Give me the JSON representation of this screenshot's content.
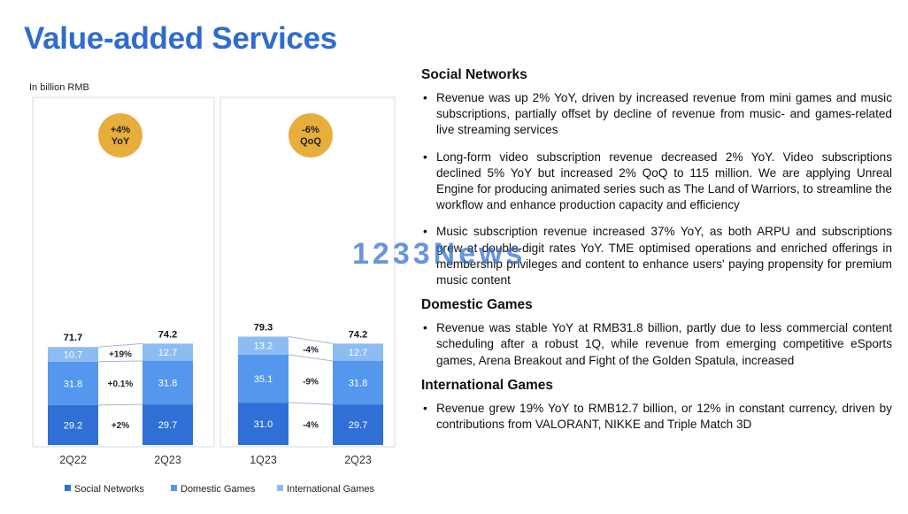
{
  "title": "Value-added Services",
  "unit_label": "In billion RMB",
  "watermark": "1233News",
  "colors": {
    "social_networks": "#2f6fd6",
    "domestic_games": "#5597ec",
    "international_games": "#8dbcf3",
    "badge": "#e8ae3c",
    "title": "#2f6ccd"
  },
  "chart_data": {
    "type": "bar",
    "stacked": true,
    "categories": [
      "2Q22",
      "2Q23",
      "1Q23",
      "2Q23"
    ],
    "series": [
      {
        "name": "Social Networks",
        "values": [
          29.2,
          29.7,
          31.0,
          29.7
        ]
      },
      {
        "name": "Domestic Games",
        "values": [
          31.8,
          31.8,
          35.1,
          31.8
        ]
      },
      {
        "name": "International Games",
        "values": [
          10.7,
          12.7,
          13.2,
          12.7
        ]
      }
    ],
    "totals": [
      "71.7",
      "74.2",
      "79.3",
      "74.2"
    ],
    "segment_labels": [
      [
        "29.2",
        "31.8",
        "10.7"
      ],
      [
        "29.7",
        "31.8",
        "12.7"
      ],
      [
        "31.0",
        "35.1",
        "13.2"
      ],
      [
        "29.7",
        "31.8",
        "12.7"
      ]
    ],
    "groups": [
      {
        "badge": [
          "+4%",
          "YoY"
        ],
        "changes": [
          "+2%",
          "+0.1%",
          "+19%"
        ]
      },
      {
        "badge": [
          "-6%",
          "QoQ"
        ],
        "changes": [
          "-4%",
          "-9%",
          "-4%"
        ]
      }
    ],
    "legend_position": "bottom"
  },
  "sections": [
    {
      "heading": "Social Networks",
      "bullets": [
        "Revenue was up 2% YoY, driven by increased revenue from mini games and music subscriptions, partially offset by decline of revenue from music- and games-related live streaming services",
        "Long-form video subscription revenue decreased 2% YoY. Video subscriptions declined 5% YoY but increased 2% QoQ to 115 million. We are applying Unreal Engine for producing animated series such as The Land of Warriors, to streamline the workflow and enhance production capacity and efficiency",
        "Music subscription revenue increased 37% YoY, as both ARPU and subscriptions grew at double-digit rates YoY. TME optimised operations and enriched offerings in membership privileges and content to enhance users' paying propensity for premium music content"
      ]
    },
    {
      "heading": "Domestic Games",
      "bullets": [
        "Revenue was stable YoY at RMB31.8 billion, partly due to less commercial content scheduling after a robust 1Q, while revenue from emerging competitive eSports games, Arena Breakout and Fight of the Golden Spatula, increased"
      ]
    },
    {
      "heading": "International Games",
      "bullets": [
        "Revenue grew 19% YoY to RMB12.7 billion, or 12% in constant currency, driven by contributions from VALORANT, NIKKE and Triple Match 3D"
      ]
    }
  ]
}
